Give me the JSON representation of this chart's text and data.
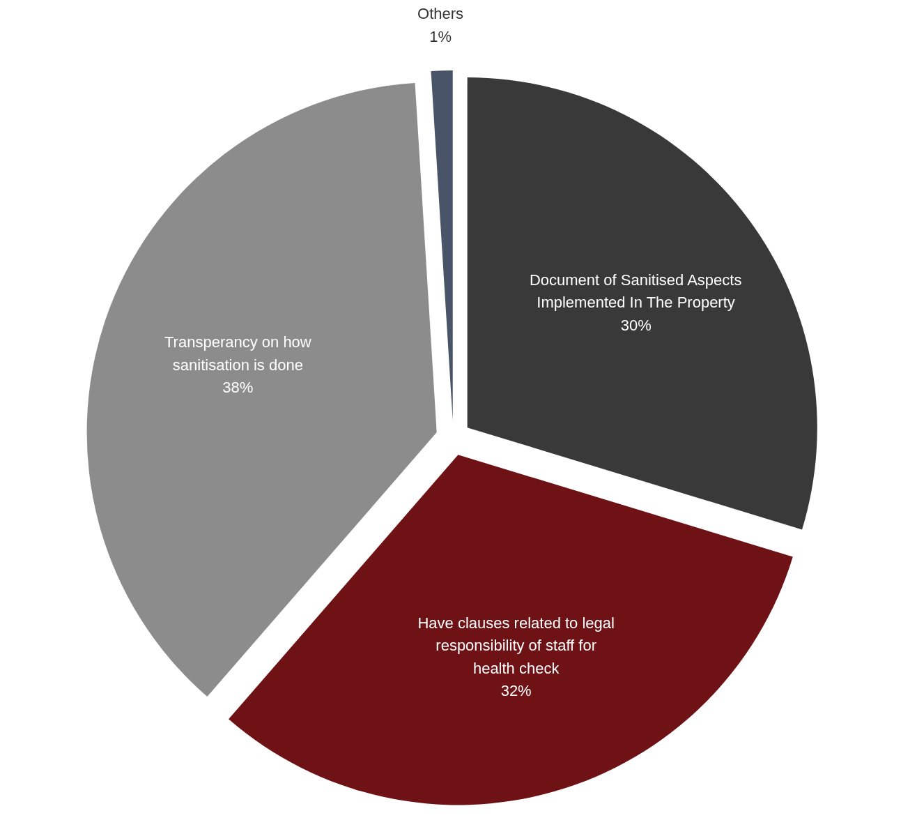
{
  "chart_data": {
    "type": "pie",
    "categories": [
      "Document of Sanitised Aspects Implemented In The Property",
      "Have clauses related to legal responsibility of staff for health check",
      "Transperancy on how sanitisation is done",
      "Others"
    ],
    "values": [
      30,
      32,
      38,
      1
    ],
    "value_labels": [
      "30%",
      "32%",
      "38%",
      "1%"
    ],
    "colors": [
      "#393939",
      "#6e1216",
      "#8c8c8c",
      "#4a5468"
    ]
  }
}
